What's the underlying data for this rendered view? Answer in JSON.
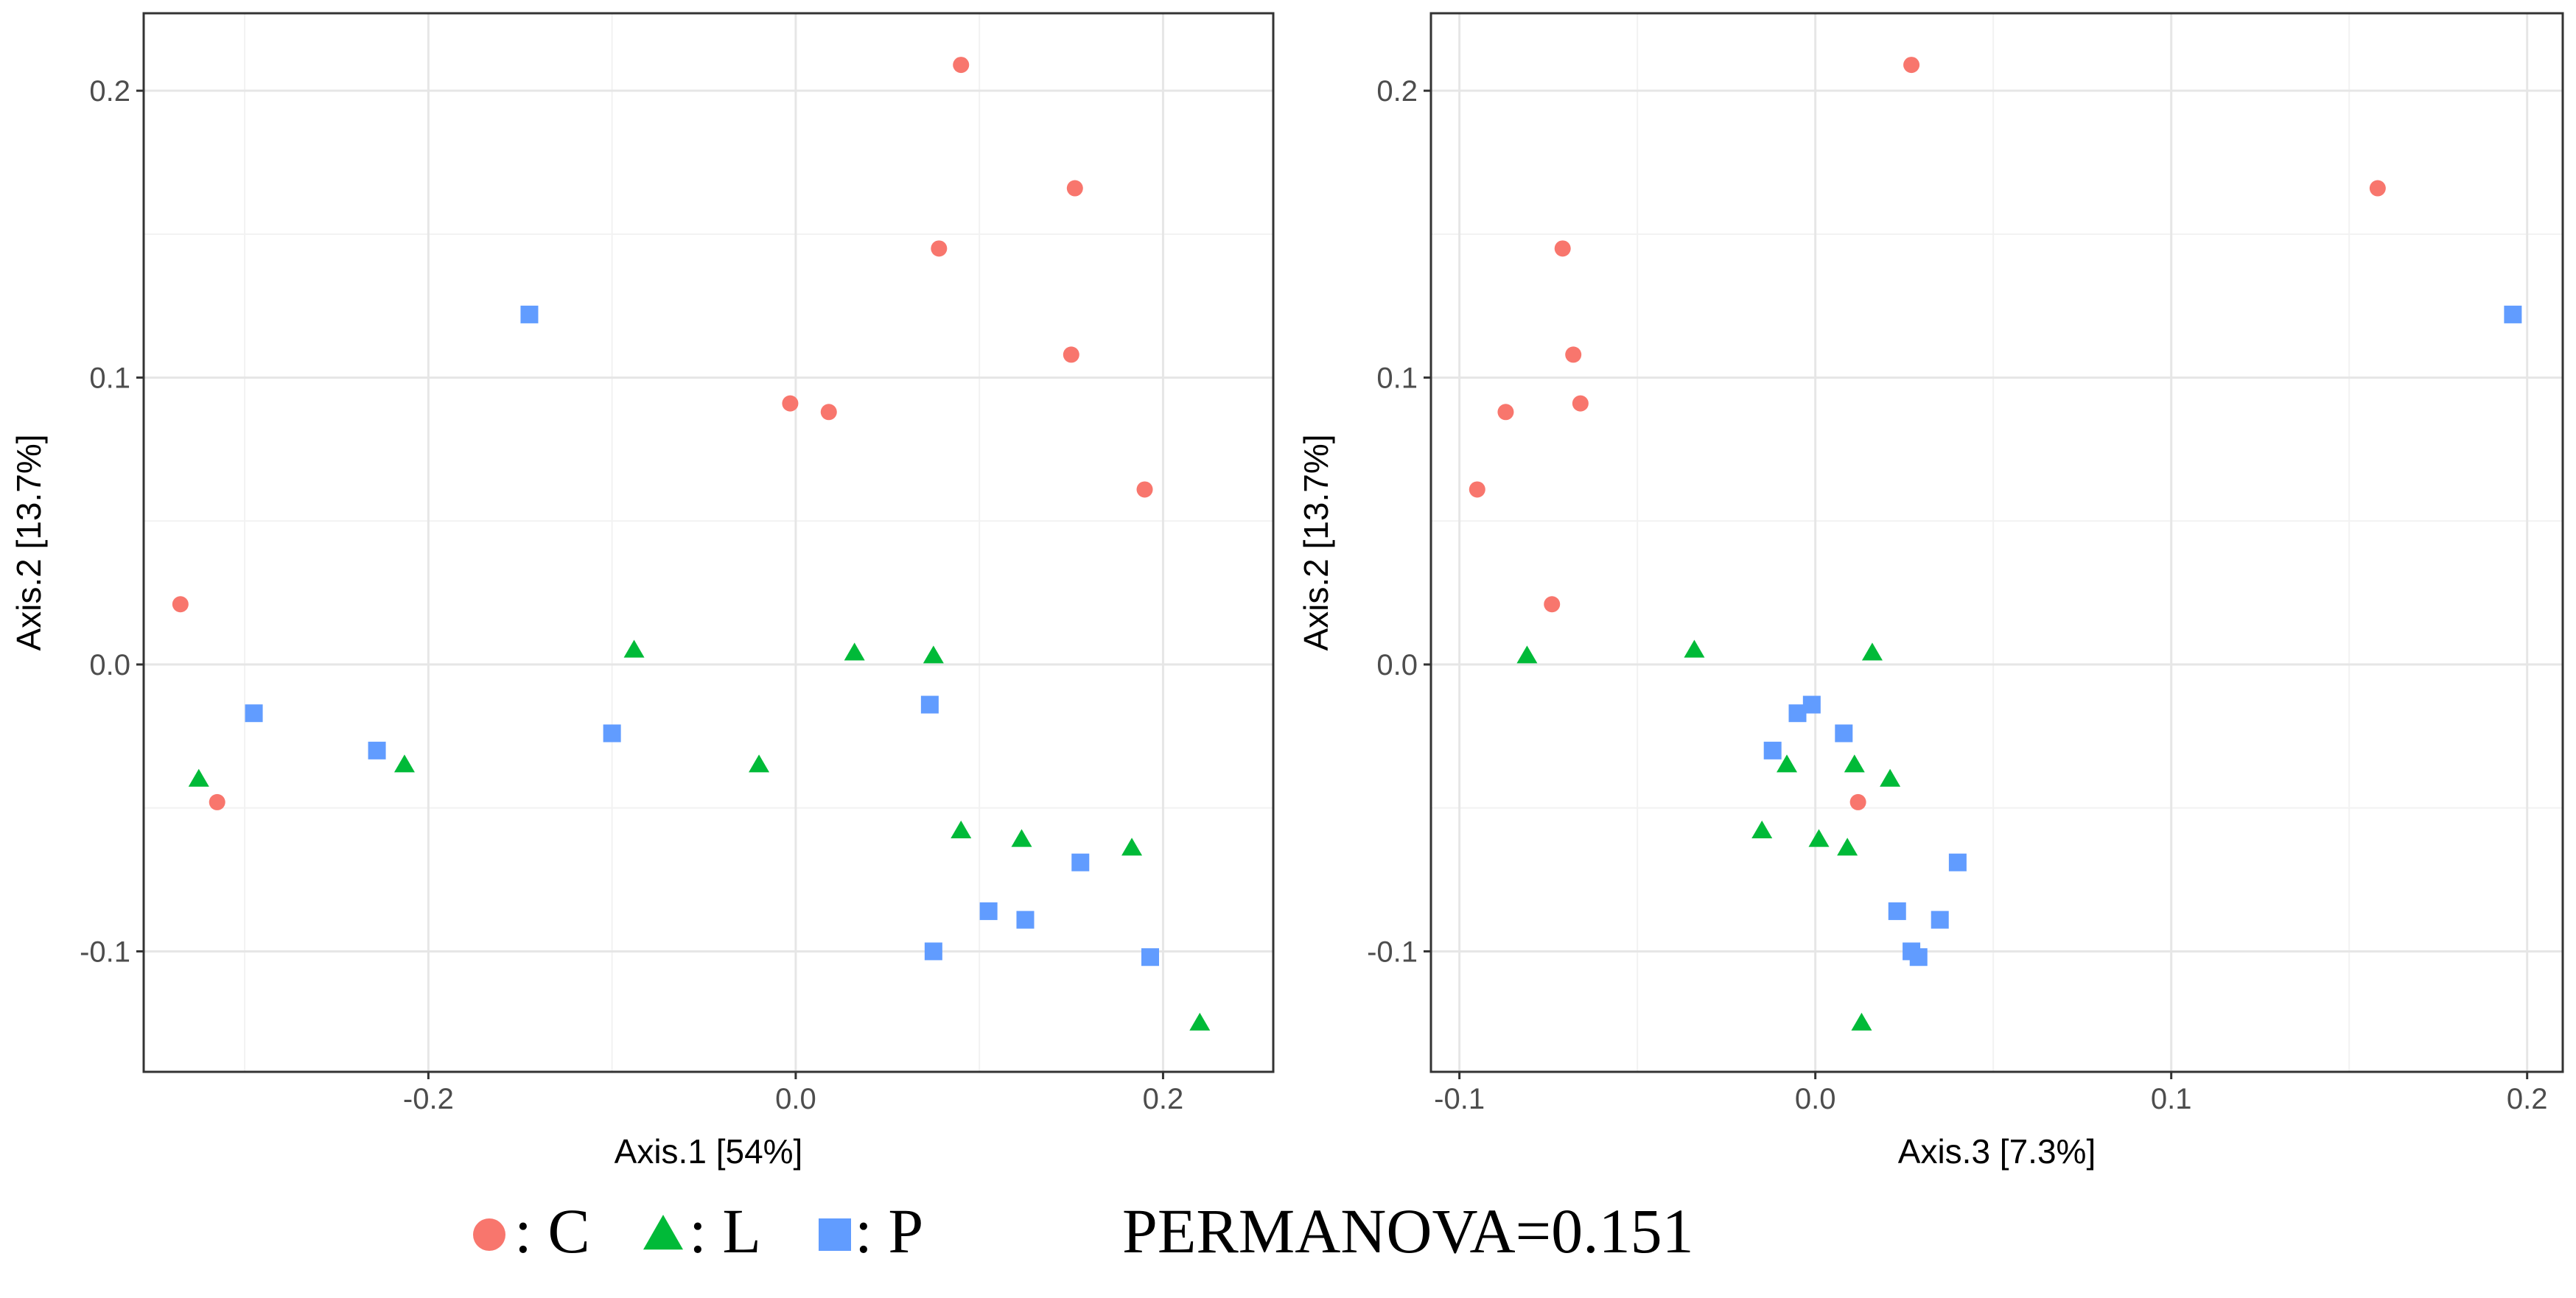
{
  "chart_data": [
    {
      "type": "scatter",
      "xlabel": "Axis.1   [54%]",
      "ylabel": "Axis.2   [13.7%]",
      "xlim": [
        -0.355,
        0.26
      ],
      "ylim": [
        -0.142,
        0.227
      ],
      "xticks": [
        -0.2,
        0.0,
        0.2
      ],
      "xtick_labels": [
        "-0.2",
        "0.0",
        "0.2"
      ],
      "yticks": [
        -0.1,
        0.0,
        0.1,
        0.2
      ],
      "ytick_labels": [
        "-0.1",
        "0.0",
        "0.1",
        "0.2"
      ],
      "grid": true,
      "series": [
        {
          "name": "C",
          "marker": "circle",
          "color": "#F8766D",
          "points": [
            [
              0.09,
              0.209
            ],
            [
              0.152,
              0.166
            ],
            [
              0.078,
              0.145
            ],
            [
              0.15,
              0.108
            ],
            [
              -0.003,
              0.091
            ],
            [
              0.018,
              0.088
            ],
            [
              0.19,
              0.061
            ],
            [
              -0.335,
              0.021
            ],
            [
              -0.315,
              -0.048
            ]
          ]
        },
        {
          "name": "L",
          "marker": "triangle",
          "color": "#00BA38",
          "points": [
            [
              -0.088,
              0.005
            ],
            [
              0.032,
              0.004
            ],
            [
              0.075,
              0.003
            ],
            [
              -0.325,
              -0.04
            ],
            [
              -0.213,
              -0.035
            ],
            [
              -0.02,
              -0.035
            ],
            [
              0.09,
              -0.058
            ],
            [
              0.123,
              -0.061
            ],
            [
              0.183,
              -0.064
            ],
            [
              0.22,
              -0.125
            ]
          ]
        },
        {
          "name": "P",
          "marker": "square",
          "color": "#619CFF",
          "points": [
            [
              -0.145,
              0.122
            ],
            [
              -0.295,
              -0.017
            ],
            [
              -0.228,
              -0.03
            ],
            [
              -0.1,
              -0.024
            ],
            [
              0.073,
              -0.014
            ],
            [
              0.155,
              -0.069
            ],
            [
              0.105,
              -0.086
            ],
            [
              0.125,
              -0.089
            ],
            [
              0.075,
              -0.1
            ],
            [
              0.193,
              -0.102
            ]
          ]
        }
      ]
    },
    {
      "type": "scatter",
      "xlabel": "Axis.3   [7.3%]",
      "ylabel": "Axis.2   [13.7%]",
      "xlim": [
        -0.108,
        0.21
      ],
      "ylim": [
        -0.142,
        0.227
      ],
      "xticks": [
        -0.1,
        0.0,
        0.1,
        0.2
      ],
      "xtick_labels": [
        "-0.1",
        "0.0",
        "0.1",
        "0.2"
      ],
      "yticks": [
        -0.1,
        0.0,
        0.1,
        0.2
      ],
      "ytick_labels": [
        "-0.1",
        "0.0",
        "0.1",
        "0.2"
      ],
      "grid": true,
      "series": [
        {
          "name": "C",
          "marker": "circle",
          "color": "#F8766D",
          "points": [
            [
              0.027,
              0.209
            ],
            [
              0.158,
              0.166
            ],
            [
              -0.071,
              0.145
            ],
            [
              -0.068,
              0.108
            ],
            [
              -0.066,
              0.091
            ],
            [
              -0.087,
              0.088
            ],
            [
              -0.095,
              0.061
            ],
            [
              -0.074,
              0.021
            ],
            [
              0.012,
              -0.048
            ]
          ]
        },
        {
          "name": "L",
          "marker": "triangle",
          "color": "#00BA38",
          "points": [
            [
              -0.034,
              0.005
            ],
            [
              0.016,
              0.004
            ],
            [
              -0.081,
              0.003
            ],
            [
              -0.008,
              -0.035
            ],
            [
              0.011,
              -0.035
            ],
            [
              0.021,
              -0.04
            ],
            [
              -0.015,
              -0.058
            ],
            [
              0.001,
              -0.061
            ],
            [
              0.009,
              -0.064
            ],
            [
              0.013,
              -0.125
            ]
          ]
        },
        {
          "name": "P",
          "marker": "square",
          "color": "#619CFF",
          "points": [
            [
              0.196,
              0.122
            ],
            [
              -0.001,
              -0.014
            ],
            [
              -0.005,
              -0.017
            ],
            [
              0.008,
              -0.024
            ],
            [
              -0.012,
              -0.03
            ],
            [
              0.04,
              -0.069
            ],
            [
              0.023,
              -0.086
            ],
            [
              0.035,
              -0.089
            ],
            [
              0.027,
              -0.1
            ],
            [
              0.029,
              -0.102
            ]
          ]
        }
      ]
    }
  ],
  "legend": {
    "items": [
      {
        "label": ": C",
        "marker": "circle",
        "color": "#F8766D"
      },
      {
        "label": ": L",
        "marker": "triangle",
        "color": "#00BA38"
      },
      {
        "label": ": P",
        "marker": "square",
        "color": "#619CFF"
      }
    ],
    "annotation": "PERMANOVA=0.151"
  }
}
